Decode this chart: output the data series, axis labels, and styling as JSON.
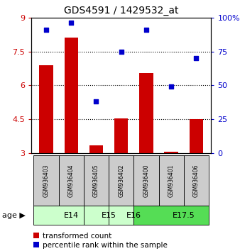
{
  "title": "GDS4591 / 1429532_at",
  "samples": [
    "GSM936403",
    "GSM936404",
    "GSM936405",
    "GSM936402",
    "GSM936400",
    "GSM936401",
    "GSM936406"
  ],
  "transformed_count": [
    6.9,
    8.1,
    3.35,
    4.55,
    6.55,
    3.05,
    4.5
  ],
  "percentile_rank": [
    91,
    96,
    38,
    75,
    91,
    49,
    70
  ],
  "tc_min": 3,
  "tc_max": 9,
  "pr_min": 0,
  "pr_max": 100,
  "tc_ticks": [
    3,
    4.5,
    6,
    7.5,
    9
  ],
  "pr_ticks": [
    0,
    25,
    50,
    75,
    100
  ],
  "pr_tick_labels": [
    "0",
    "25",
    "50",
    "75",
    "100%"
  ],
  "age_groups": [
    {
      "label": "E14",
      "start": 0,
      "end": 2,
      "color": "#ccffcc"
    },
    {
      "label": "E15",
      "start": 2,
      "end": 3,
      "color": "#ccffcc"
    },
    {
      "label": "E16",
      "start": 3,
      "end": 4,
      "color": "#ccffcc"
    },
    {
      "label": "E17.5",
      "start": 4,
      "end": 7,
      "color": "#55dd55"
    }
  ],
  "bar_color": "#cc0000",
  "dot_color": "#0000cc",
  "bar_width": 0.55,
  "sample_bg_color": "#cccccc",
  "age_label_fontsize": 8,
  "tick_fontsize": 8,
  "legend_fontsize": 7.5,
  "title_fontsize": 10
}
